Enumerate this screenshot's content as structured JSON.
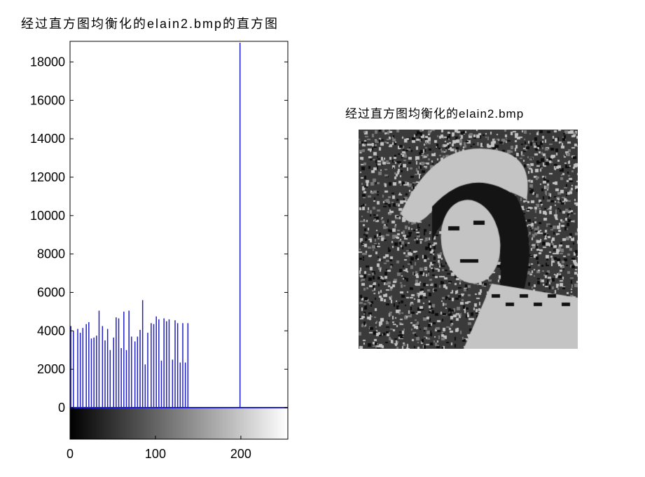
{
  "histogram_title": "经过直方图均衡化的elain2.bmp的直方图",
  "image_title": "经过直方图均衡化的elain2.bmp",
  "chart_data": {
    "type": "bar",
    "title": "经过直方图均衡化的elain2.bmp的直方图",
    "xlabel": "",
    "ylabel": "",
    "xlim": [
      0,
      255
    ],
    "ylim": [
      0,
      19000
    ],
    "x_ticks": [
      0,
      100,
      200
    ],
    "y_ticks": [
      0,
      2000,
      4000,
      6000,
      8000,
      10000,
      12000,
      14000,
      16000,
      18000
    ],
    "grid": false,
    "line_color": "#1f1fc8",
    "colorbar": {
      "from": "#000000",
      "to": "#ffffff",
      "range": [
        0,
        255
      ]
    },
    "x": [
      1,
      4,
      9,
      12,
      15,
      19,
      22,
      25,
      28,
      31,
      34,
      38,
      41,
      44,
      47,
      51,
      54,
      57,
      60,
      63,
      66,
      69,
      72,
      76,
      79,
      82,
      85,
      88,
      91,
      95,
      98,
      101,
      104,
      107,
      110,
      113,
      116,
      120,
      123,
      126,
      129,
      132,
      135,
      138,
      199
    ],
    "values": [
      4250,
      4000,
      4100,
      3900,
      4150,
      4350,
      4450,
      3600,
      3650,
      3750,
      5050,
      4250,
      3500,
      4100,
      3000,
      3650,
      4700,
      4650,
      3100,
      5000,
      3000,
      5050,
      3700,
      3450,
      3700,
      4050,
      5600,
      2250,
      3900,
      4400,
      4350,
      4750,
      4600,
      2450,
      4650,
      4500,
      4600,
      2500,
      4550,
      4400,
      2350,
      4400,
      2350,
      4400,
      19000
    ]
  }
}
